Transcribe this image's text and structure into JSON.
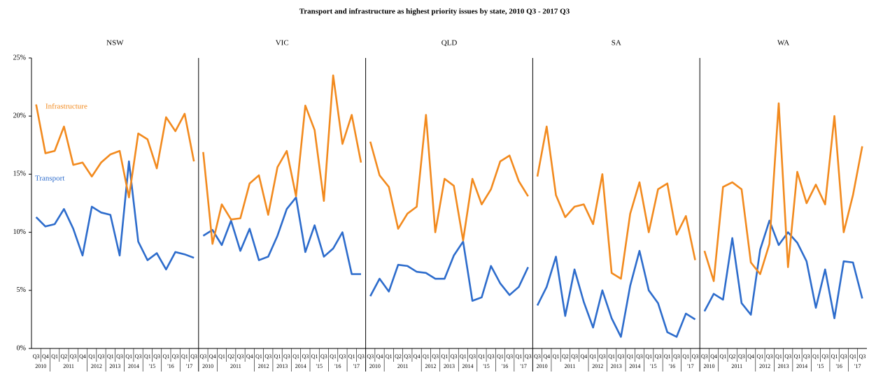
{
  "chart_data": {
    "type": "line",
    "title": "Transport and infrastructure as highest priority issues by state, 2010 Q3 - 2017 Q3",
    "ylim": [
      0,
      25
    ],
    "yticks": [
      {
        "value": 0,
        "label": "0%"
      },
      {
        "value": 5,
        "label": "5%"
      },
      {
        "value": 10,
        "label": "10%"
      },
      {
        "value": 15,
        "label": "15%"
      },
      {
        "value": 20,
        "label": "20%"
      },
      {
        "value": 25,
        "label": "25%"
      }
    ],
    "categories": [
      "Q3",
      "Q4",
      "Q1",
      "Q2",
      "Q3",
      "Q4",
      "Q1",
      "Q3",
      "Q1",
      "Q3",
      "Q1",
      "Q3",
      "Q1",
      "Q3",
      "Q1",
      "Q3",
      "Q1",
      "Q3"
    ],
    "year_groups": [
      {
        "label": "2010",
        "count": 2
      },
      {
        "label": "2011",
        "count": 4
      },
      {
        "label": "2012",
        "count": 2
      },
      {
        "label": "2013",
        "count": 2
      },
      {
        "label": "2014",
        "count": 2
      },
      {
        "label": "'15",
        "count": 2
      },
      {
        "label": "'16",
        "count": 2
      },
      {
        "label": "'17",
        "count": 2
      }
    ],
    "series": [
      {
        "name": "Transport",
        "color": "#2d6ccc"
      },
      {
        "name": "Infrastructure",
        "color": "#f28a1e"
      }
    ],
    "panels": [
      {
        "name": "NSW",
        "values": [
          [
            11.3,
            10.5,
            10.7,
            12.0,
            10.3,
            8.0,
            12.2,
            11.7,
            11.5,
            8.0,
            16.1,
            9.2,
            7.6,
            8.2,
            6.8,
            8.3,
            8.1,
            7.8
          ],
          [
            21.0,
            16.8,
            17.0,
            19.1,
            15.8,
            16.0,
            14.8,
            16.0,
            16.7,
            17.0,
            13.0,
            18.5,
            18.0,
            15.5,
            19.9,
            18.7,
            20.2,
            16.1
          ]
        ]
      },
      {
        "name": "VIC",
        "values": [
          [
            9.7,
            10.2,
            8.9,
            11.0,
            8.4,
            10.3,
            7.6,
            7.9,
            9.7,
            12.0,
            13.0,
            8.3,
            10.6,
            7.9,
            8.6,
            10.0,
            6.4,
            6.4
          ],
          [
            16.9,
            9.0,
            12.4,
            11.1,
            11.2,
            14.2,
            14.9,
            11.5,
            15.6,
            17.0,
            13.1,
            20.9,
            18.8,
            12.7,
            23.5,
            17.6,
            20.1,
            16.0
          ]
        ]
      },
      {
        "name": "QLD",
        "values": [
          [
            4.5,
            6.0,
            4.9,
            7.2,
            7.1,
            6.6,
            6.5,
            6.0,
            6.0,
            8.0,
            9.2,
            4.1,
            4.4,
            7.1,
            5.6,
            4.6,
            5.3,
            7.0
          ],
          [
            17.8,
            14.9,
            13.9,
            10.3,
            11.6,
            12.2,
            20.1,
            10.0,
            14.6,
            14.0,
            9.3,
            14.6,
            12.4,
            13.7,
            16.1,
            16.6,
            14.4,
            13.1
          ]
        ]
      },
      {
        "name": "SA",
        "values": [
          [
            3.7,
            5.3,
            7.9,
            2.8,
            6.8,
            4.0,
            1.8,
            5.0,
            2.6,
            1.0,
            5.4,
            8.4,
            5.0,
            3.9,
            1.4,
            1.0,
            3.0,
            2.5
          ],
          [
            14.8,
            19.1,
            13.2,
            11.3,
            12.2,
            12.4,
            10.7,
            15.0,
            6.5,
            6.0,
            11.6,
            14.3,
            10.0,
            13.7,
            14.2,
            9.8,
            11.4,
            7.6
          ]
        ]
      },
      {
        "name": "WA",
        "values": [
          [
            3.2,
            4.7,
            4.2,
            9.5,
            3.9,
            2.9,
            8.5,
            11.0,
            8.9,
            10.0,
            9.1,
            7.5,
            3.5,
            6.8,
            2.6,
            7.5,
            7.4,
            4.3
          ],
          [
            8.4,
            5.8,
            13.9,
            14.3,
            13.7,
            7.4,
            6.4,
            9.0,
            21.1,
            7.0,
            15.2,
            12.5,
            14.1,
            12.4,
            20.0,
            10.0,
            13.2,
            17.4
          ]
        ]
      }
    ]
  }
}
